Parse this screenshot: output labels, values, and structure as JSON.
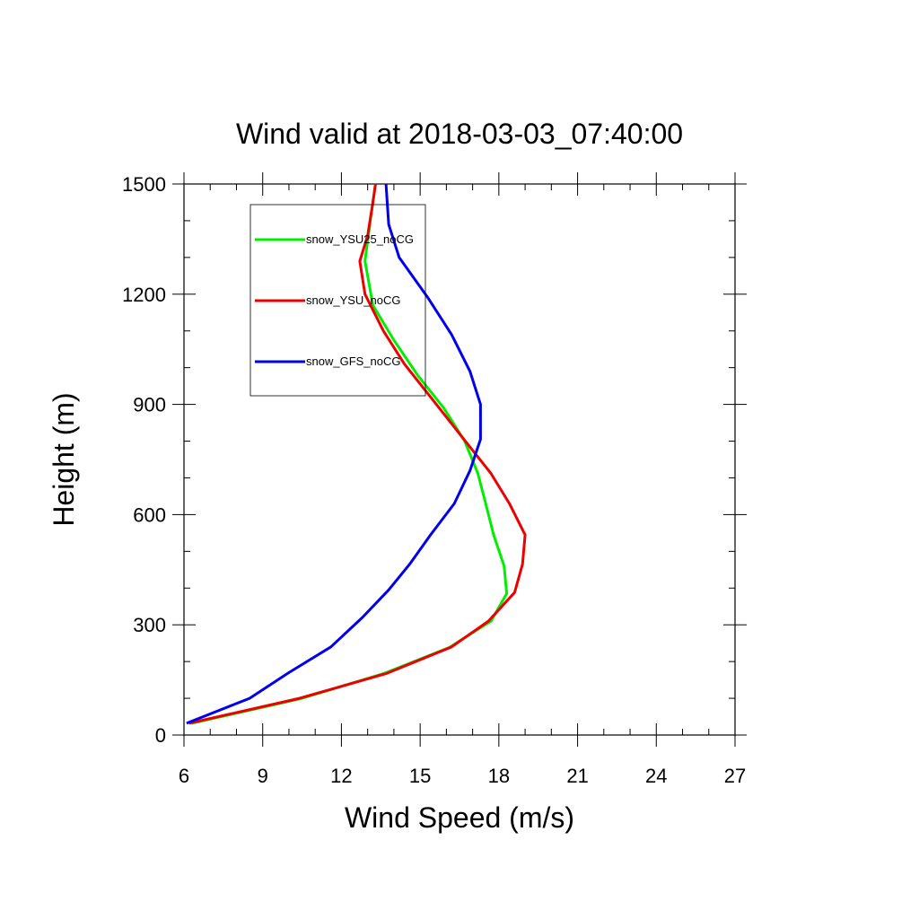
{
  "chart_data": {
    "type": "line",
    "title": "Wind valid at 2018-03-03_07:40:00",
    "xlabel": "Wind Speed (m/s)",
    "ylabel": "Height (m)",
    "xlim": [
      6,
      27
    ],
    "ylim": [
      0,
      1500
    ],
    "xticks": [
      6,
      9,
      12,
      15,
      18,
      21,
      24,
      27
    ],
    "yticks": [
      0,
      300,
      600,
      900,
      1200,
      1500
    ],
    "grid": false,
    "legend_position": "top-left",
    "series": [
      {
        "name": "snow_YSU25_noCG",
        "color": "#00ee00",
        "points": [
          [
            6.3,
            32
          ],
          [
            10.5,
            100
          ],
          [
            13.6,
            167
          ],
          [
            16.1,
            238
          ],
          [
            17.7,
            310
          ],
          [
            18.3,
            385
          ],
          [
            18.2,
            460
          ],
          [
            17.8,
            545
          ],
          [
            17.5,
            630
          ],
          [
            17.2,
            712
          ],
          [
            16.7,
            800
          ],
          [
            15.9,
            890
          ],
          [
            14.9,
            980
          ],
          [
            14.0,
            1075
          ],
          [
            13.2,
            1170
          ],
          [
            12.9,
            1290
          ],
          [
            13.1,
            1400
          ],
          [
            13.3,
            1500
          ]
        ]
      },
      {
        "name": "snow_YSU_noCG",
        "color": "#ee0000",
        "points": [
          [
            6.2,
            32
          ],
          [
            10.4,
            100
          ],
          [
            13.7,
            167
          ],
          [
            16.2,
            240
          ],
          [
            17.6,
            310
          ],
          [
            18.6,
            388
          ],
          [
            18.9,
            465
          ],
          [
            19.0,
            545
          ],
          [
            18.4,
            630
          ],
          [
            17.7,
            712
          ],
          [
            16.5,
            820
          ],
          [
            15.4,
            920
          ],
          [
            14.4,
            1010
          ],
          [
            13.6,
            1100
          ],
          [
            12.9,
            1200
          ],
          [
            12.7,
            1290
          ],
          [
            13.0,
            1360
          ],
          [
            13.2,
            1450
          ],
          [
            13.3,
            1500
          ]
        ]
      },
      {
        "name": "snow_GFS_noCG",
        "color": "#0000ee",
        "points": [
          [
            6.1,
            32
          ],
          [
            8.5,
            100
          ],
          [
            10.0,
            170
          ],
          [
            11.6,
            240
          ],
          [
            12.8,
            320
          ],
          [
            13.8,
            395
          ],
          [
            14.6,
            465
          ],
          [
            15.4,
            545
          ],
          [
            16.3,
            630
          ],
          [
            16.9,
            720
          ],
          [
            17.3,
            805
          ],
          [
            17.3,
            900
          ],
          [
            16.9,
            990
          ],
          [
            16.2,
            1090
          ],
          [
            15.3,
            1190
          ],
          [
            14.2,
            1300
          ],
          [
            13.8,
            1390
          ],
          [
            13.7,
            1500
          ]
        ]
      }
    ]
  }
}
